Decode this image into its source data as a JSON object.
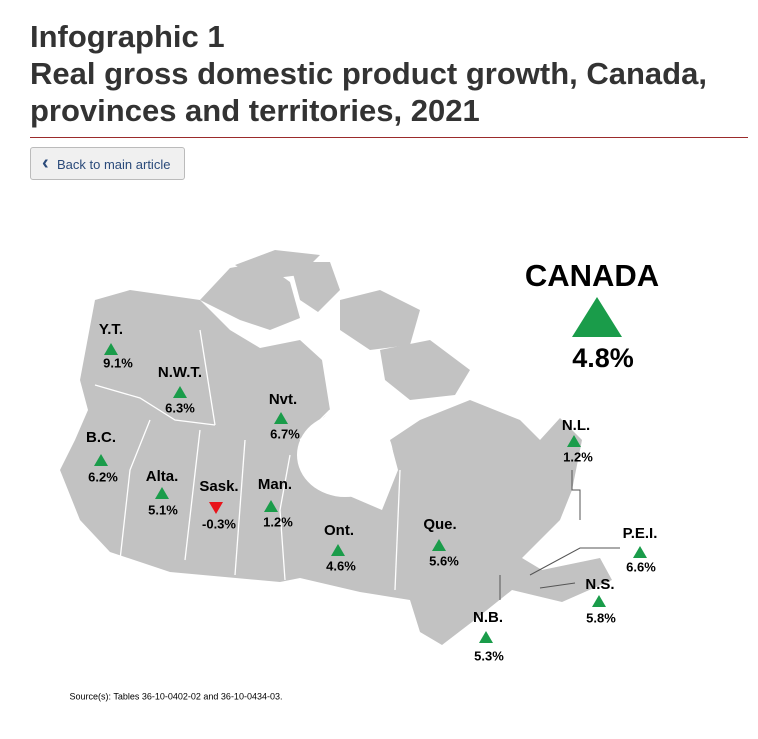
{
  "header": {
    "title": [
      "Infographic 1",
      "Real gross domestic product growth, Canada, provinces and territories, 2021"
    ]
  },
  "button": {
    "label": "Back to main article"
  },
  "canada": {
    "label": "CANADA",
    "value": "4.8%",
    "color": "#1a9c4a"
  },
  "regions": [
    {
      "label": "Y.T.",
      "value": "9.1%",
      "color": "#1a9c4a"
    },
    {
      "label": "N.W.T.",
      "value": "6.3%",
      "color": "#1a9c4a"
    },
    {
      "label": "Nvt.",
      "value": "6.7%",
      "color": "#1a9c4a"
    },
    {
      "label": "B.C.",
      "value": "6.2%",
      "color": "#1a9c4a"
    },
    {
      "label": "Alta.",
      "value": "5.1%",
      "color": "#1a9c4a"
    },
    {
      "label": "Sask.",
      "value": "-0.3%",
      "color": "#e8141b"
    },
    {
      "label": "Man.",
      "value": "1.2%",
      "color": "#1a9c4a"
    },
    {
      "label": "Ont.",
      "value": "4.6%",
      "color": "#1a9c4a"
    },
    {
      "label": "Que.",
      "value": "5.6%",
      "color": "#1a9c4a"
    },
    {
      "label": "N.L.",
      "value": "1.2%",
      "color": "#1a9c4a"
    },
    {
      "label": "P.E.I.",
      "value": "6.6%",
      "color": "#1a9c4a"
    },
    {
      "label": "N.S.",
      "value": "5.8%",
      "color": "#1a9c4a"
    },
    {
      "label": "N.B.",
      "value": "5.3%",
      "color": "#1a9c4a"
    }
  ],
  "source": "Source(s): Tables 36-10-0402-02 and 36-10-0434-03."
}
